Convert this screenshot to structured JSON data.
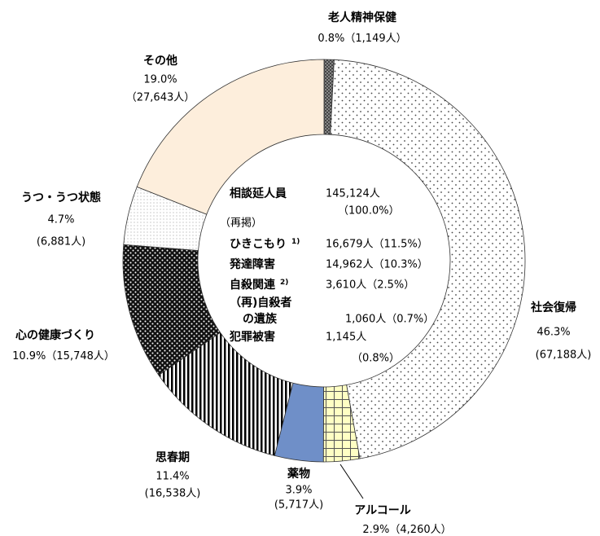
{
  "chart_data": {
    "type": "donut",
    "categories": [
      "老人精神保健",
      "社会復帰",
      "アルコール",
      "薬物",
      "思春期",
      "心の健康づくり",
      "うつ・うつ状態",
      "その他"
    ],
    "values": [
      0.8,
      46.3,
      2.9,
      3.9,
      11.4,
      10.9,
      4.7,
      19.0
    ],
    "value_labels": [
      "0.8%",
      "46.3%",
      "2.9%",
      "3.9%",
      "11.4%",
      "10.9%",
      "4.7%",
      "19.0%"
    ],
    "count_labels": [
      "（1,149人）",
      "(67,188人)",
      "（4,260人）",
      "(5,717人)",
      "(16,538人)",
      "（15,748人）",
      "(6,881人)",
      "（27,643人）"
    ],
    "colors": [
      "#9a9a9a",
      "#ffffff",
      "#ffffc4",
      "#6f8fc8",
      "#ffffff",
      "#111111",
      "#ffffff",
      "#fdeedc"
    ],
    "center_text": {
      "title": "相談延人員",
      "total": "145,124人",
      "total_share": "（100.0%）",
      "subheading": "（再掲）",
      "rows": [
        {
          "label": "ひきこもり",
          "note": "1)",
          "value": "16,679人（11.5%）"
        },
        {
          "label": "発達障害",
          "value": "14,962人（10.3%）"
        },
        {
          "label": "自殺関連",
          "note": "2)",
          "value": "3,610人（2.5%）"
        },
        {
          "label": "（再)自殺者",
          "label2": "の遺族",
          "value": "1,060人（0.7%）"
        },
        {
          "label": "犯罪被害",
          "value": "1,145人",
          "value2": "（0.8%）"
        }
      ]
    }
  }
}
